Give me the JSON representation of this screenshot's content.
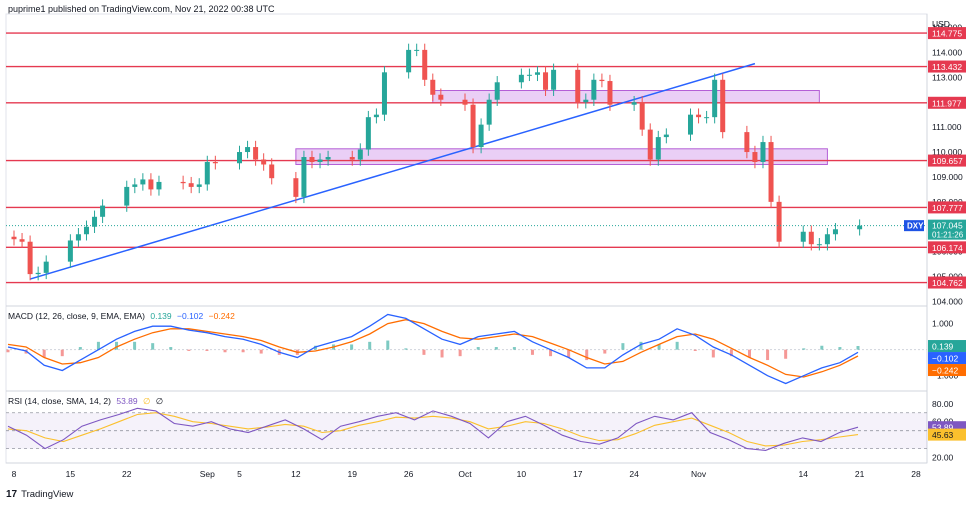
{
  "header": {
    "publisher": "puprime1 published on TradingView.com, Nov 21, 2022 00:38 UTC"
  },
  "footer": {
    "brand": "TradingView"
  },
  "symbol": "DXY",
  "currency": "USD",
  "last_price": "107.045",
  "countdown": "01:21:26",
  "colors": {
    "up": "#26a69a",
    "down": "#ef5350",
    "level": "#e53950",
    "trend": "#2962ff",
    "zone": "#d8a8ef",
    "macd": "#2962ff",
    "signal": "#ff6d00",
    "rsi": "#7e57c2",
    "rsi_ma": "#fbc02d"
  },
  "chart_data": [
    {
      "type": "candlestick",
      "title": "DXY",
      "y_unit": "USD",
      "ylim": [
        103.9,
        115.3
      ],
      "price_ticks": [
        "115.000",
        "114.000",
        "113.000",
        "112.000",
        "111.000",
        "110.000",
        "109.000",
        "108.000",
        "107.000",
        "106.000",
        "105.000",
        "104.000"
      ],
      "x_ticks": [
        {
          "label": "8",
          "date": "2022-08-08"
        },
        {
          "label": "15",
          "date": "2022-08-15"
        },
        {
          "label": "22",
          "date": "2022-08-22"
        },
        {
          "label": "Sep",
          "date": "2022-09-01"
        },
        {
          "label": "5",
          "date": "2022-09-05"
        },
        {
          "label": "12",
          "date": "2022-09-12"
        },
        {
          "label": "19",
          "date": "2022-09-19"
        },
        {
          "label": "26",
          "date": "2022-09-26"
        },
        {
          "label": "Oct",
          "date": "2022-10-03"
        },
        {
          "label": "10",
          "date": "2022-10-10"
        },
        {
          "label": "17",
          "date": "2022-10-17"
        },
        {
          "label": "24",
          "date": "2022-10-24"
        },
        {
          "label": "Nov",
          "date": "2022-11-01"
        },
        {
          "label": "14",
          "date": "2022-11-14"
        },
        {
          "label": "21",
          "date": "2022-11-21"
        },
        {
          "label": "28",
          "date": "2022-11-28"
        }
      ],
      "horizontal_levels": [
        "114.775",
        "113.432",
        "111.977",
        "109.657",
        "107.777",
        "106.174",
        "104.762"
      ],
      "zones": [
        {
          "from_date": "2022-09-29",
          "to_date": "2022-11-16",
          "low": 111.97,
          "high": 112.47
        },
        {
          "from_date": "2022-09-12",
          "to_date": "2022-11-17",
          "low": 109.5,
          "high": 110.13
        }
      ],
      "trendline": {
        "start": {
          "date": "2022-08-10",
          "price": 104.9
        },
        "end": {
          "date": "2022-11-08",
          "price": 113.55
        }
      },
      "close_series": [
        {
          "date": "2022-08-04",
          "close": 106.7
        },
        {
          "date": "2022-08-05",
          "close": 106.6
        },
        {
          "date": "2022-08-08",
          "close": 106.5
        },
        {
          "date": "2022-08-09",
          "close": 106.4
        },
        {
          "date": "2022-08-10",
          "close": 105.1
        },
        {
          "date": "2022-08-11",
          "close": 105.15
        },
        {
          "date": "2022-08-12",
          "close": 105.6
        },
        {
          "date": "2022-08-15",
          "close": 106.45
        },
        {
          "date": "2022-08-16",
          "close": 106.7
        },
        {
          "date": "2022-08-17",
          "close": 107.0
        },
        {
          "date": "2022-08-18",
          "close": 107.4
        },
        {
          "date": "2022-08-19",
          "close": 107.85
        },
        {
          "date": "2022-08-22",
          "close": 108.6
        },
        {
          "date": "2022-08-23",
          "close": 108.7
        },
        {
          "date": "2022-08-24",
          "close": 108.9
        },
        {
          "date": "2022-08-25",
          "close": 108.5
        },
        {
          "date": "2022-08-26",
          "close": 108.8
        },
        {
          "date": "2022-08-29",
          "close": 108.75
        },
        {
          "date": "2022-08-30",
          "close": 108.6
        },
        {
          "date": "2022-08-31",
          "close": 108.7
        },
        {
          "date": "2022-09-01",
          "close": 109.6
        },
        {
          "date": "2022-09-02",
          "close": 109.55
        },
        {
          "date": "2022-09-05",
          "close": 110.0
        },
        {
          "date": "2022-09-06",
          "close": 110.2
        },
        {
          "date": "2022-09-07",
          "close": 109.7
        },
        {
          "date": "2022-09-08",
          "close": 109.5
        },
        {
          "date": "2022-09-09",
          "close": 108.95
        },
        {
          "date": "2022-09-12",
          "close": 108.2
        },
        {
          "date": "2022-09-13",
          "close": 109.8
        },
        {
          "date": "2022-09-14",
          "close": 109.6
        },
        {
          "date": "2022-09-15",
          "close": 109.7
        },
        {
          "date": "2022-09-16",
          "close": 109.8
        },
        {
          "date": "2022-09-19",
          "close": 109.7
        },
        {
          "date": "2022-09-20",
          "close": 110.1
        },
        {
          "date": "2022-09-21",
          "close": 111.4
        },
        {
          "date": "2022-09-22",
          "close": 111.5
        },
        {
          "date": "2022-09-23",
          "close": 113.2
        },
        {
          "date": "2022-09-26",
          "close": 114.1
        },
        {
          "date": "2022-09-27",
          "close": 114.1
        },
        {
          "date": "2022-09-28",
          "close": 112.9
        },
        {
          "date": "2022-09-29",
          "close": 112.3
        },
        {
          "date": "2022-09-30",
          "close": 112.1
        },
        {
          "date": "2022-10-03",
          "close": 111.9
        },
        {
          "date": "2022-10-04",
          "close": 110.2
        },
        {
          "date": "2022-10-05",
          "close": 111.1
        },
        {
          "date": "2022-10-06",
          "close": 112.1
        },
        {
          "date": "2022-10-07",
          "close": 112.8
        },
        {
          "date": "2022-10-10",
          "close": 113.1
        },
        {
          "date": "2022-10-11",
          "close": 113.1
        },
        {
          "date": "2022-10-12",
          "close": 113.2
        },
        {
          "date": "2022-10-13",
          "close": 112.5
        },
        {
          "date": "2022-10-14",
          "close": 113.3
        },
        {
          "date": "2022-10-17",
          "close": 112.0
        },
        {
          "date": "2022-10-18",
          "close": 112.1
        },
        {
          "date": "2022-10-19",
          "close": 112.9
        },
        {
          "date": "2022-10-20",
          "close": 112.85
        },
        {
          "date": "2022-10-21",
          "close": 111.9
        },
        {
          "date": "2022-10-24",
          "close": 112.0
        },
        {
          "date": "2022-10-25",
          "close": 110.9
        },
        {
          "date": "2022-10-26",
          "close": 109.7
        },
        {
          "date": "2022-10-27",
          "close": 110.6
        },
        {
          "date": "2022-10-28",
          "close": 110.7
        },
        {
          "date": "2022-10-31",
          "close": 111.5
        },
        {
          "date": "2022-11-01",
          "close": 111.4
        },
        {
          "date": "2022-11-02",
          "close": 111.4
        },
        {
          "date": "2022-11-03",
          "close": 112.9
        },
        {
          "date": "2022-11-04",
          "close": 110.8
        },
        {
          "date": "2022-11-07",
          "close": 110.0
        },
        {
          "date": "2022-11-08",
          "close": 109.6
        },
        {
          "date": "2022-11-09",
          "close": 110.4
        },
        {
          "date": "2022-11-10",
          "close": 108.0
        },
        {
          "date": "2022-11-11",
          "close": 106.4
        },
        {
          "date": "2022-11-14",
          "close": 106.8
        },
        {
          "date": "2022-11-15",
          "close": 106.3
        },
        {
          "date": "2022-11-16",
          "close": 106.3
        },
        {
          "date": "2022-11-17",
          "close": 106.7
        },
        {
          "date": "2022-11-18",
          "close": 106.9
        },
        {
          "date": "2022-11-21",
          "close": 107.045
        }
      ]
    },
    {
      "type": "line",
      "title": "MACD (12, 26, close, 9, EMA, EMA)",
      "legend_values": [
        "0.139",
        "−0.102",
        "−0.242"
      ],
      "ticks": [
        "1.000",
        "−1.000"
      ],
      "series": [
        {
          "values": [
            0.1,
            -0.05,
            -0.6,
            -0.8,
            -0.4,
            0.0,
            0.4,
            0.7,
            0.9,
            0.9,
            0.75,
            0.65,
            0.5,
            0.4,
            0.2,
            -0.1,
            -0.3,
            0.1,
            0.3,
            0.5,
            0.9,
            1.35,
            1.2,
            0.8,
            0.4,
            0.2,
            0.5,
            0.6,
            0.7,
            0.3,
            0.0,
            -0.3,
            -0.7,
            -0.7,
            -0.2,
            0.2,
            0.4,
            0.8,
            0.55,
            0.1,
            -0.2,
            -0.6,
            -1.0,
            -1.3,
            -1.0,
            -0.7,
            -0.5,
            -0.102
          ]
        },
        {
          "values": [
            0.2,
            0.1,
            -0.3,
            -0.55,
            -0.5,
            -0.3,
            0.1,
            0.4,
            0.65,
            0.8,
            0.8,
            0.7,
            0.6,
            0.5,
            0.35,
            0.1,
            -0.1,
            -0.05,
            0.1,
            0.3,
            0.6,
            1.0,
            1.15,
            1.0,
            0.7,
            0.45,
            0.4,
            0.5,
            0.6,
            0.5,
            0.25,
            0.0,
            -0.3,
            -0.55,
            -0.45,
            -0.1,
            0.2,
            0.5,
            0.6,
            0.4,
            0.05,
            -0.3,
            -0.6,
            -0.95,
            -1.05,
            -0.85,
            -0.6,
            -0.242
          ]
        }
      ],
      "histogram_last": "0.139"
    },
    {
      "type": "line",
      "title": "RSI (14, close, SMA, 14, 2)",
      "legend_values": [
        "53.89",
        "∅",
        "∅"
      ],
      "ticks": [
        "80.00",
        "60.00",
        "20.00"
      ],
      "band": [
        30,
        70
      ],
      "series": [
        {
          "values": [
            55,
            45,
            30,
            40,
            55,
            62,
            68,
            75,
            72,
            58,
            55,
            60,
            52,
            48,
            55,
            62,
            52,
            40,
            55,
            60,
            66,
            70,
            62,
            72,
            66,
            58,
            42,
            60,
            66,
            56,
            45,
            38,
            35,
            42,
            58,
            66,
            62,
            70,
            48,
            40,
            30,
            28,
            36,
            42,
            38,
            48,
            53.89
          ]
        },
        {
          "values": [
            52,
            50,
            42,
            38,
            45,
            52,
            60,
            68,
            70,
            66,
            60,
            58,
            55,
            52,
            54,
            57,
            55,
            48,
            50,
            56,
            60,
            65,
            64,
            66,
            64,
            60,
            52,
            55,
            60,
            58,
            52,
            44,
            39,
            40,
            47,
            56,
            60,
            64,
            56,
            48,
            38,
            33,
            34,
            38,
            40,
            43,
            45.63
          ]
        }
      ],
      "ma_last": "45.63"
    }
  ]
}
